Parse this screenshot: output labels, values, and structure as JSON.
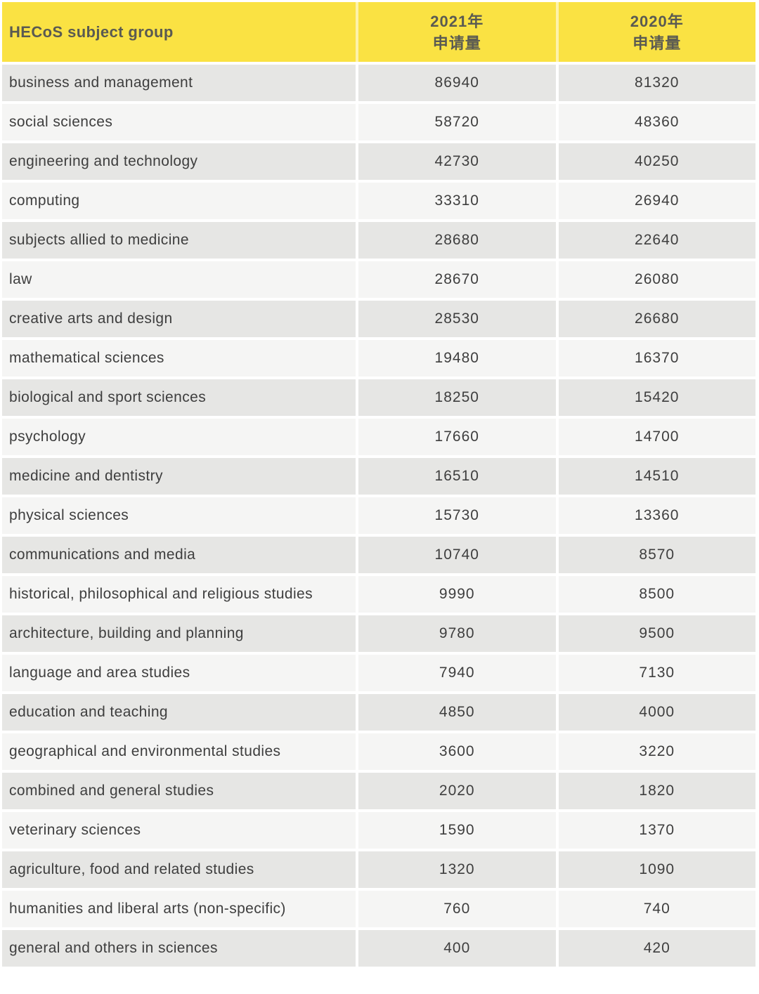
{
  "colors": {
    "header_bg": "#fae243",
    "header_text": "#5a5a52",
    "row_dark_bg": "#e6e6e4",
    "row_light_bg": "#f5f5f4",
    "cell_text": "#3e3e3e",
    "separator": "#ffffff"
  },
  "table": {
    "header": {
      "subject_label": "HECoS subject group",
      "col_2021": {
        "line1": "2021年",
        "line2": "申请量"
      },
      "col_2020": {
        "line1": "2020年",
        "line2": "申请量"
      }
    },
    "rows": [
      {
        "subject": "business and management",
        "applications_2021": "86940",
        "applications_2020": "81320"
      },
      {
        "subject": "social sciences",
        "applications_2021": "58720",
        "applications_2020": "48360"
      },
      {
        "subject": "engineering and technology",
        "applications_2021": "42730",
        "applications_2020": "40250"
      },
      {
        "subject": "computing",
        "applications_2021": "33310",
        "applications_2020": "26940"
      },
      {
        "subject": "subjects allied to medicine",
        "applications_2021": "28680",
        "applications_2020": "22640"
      },
      {
        "subject": "law",
        "applications_2021": "28670",
        "applications_2020": "26080"
      },
      {
        "subject": "creative arts and design",
        "applications_2021": "28530",
        "applications_2020": "26680"
      },
      {
        "subject": "mathematical sciences",
        "applications_2021": "19480",
        "applications_2020": "16370"
      },
      {
        "subject": "biological and sport sciences",
        "applications_2021": "18250",
        "applications_2020": "15420"
      },
      {
        "subject": "psychology",
        "applications_2021": "17660",
        "applications_2020": "14700"
      },
      {
        "subject": "medicine and dentistry",
        "applications_2021": "16510",
        "applications_2020": "14510"
      },
      {
        "subject": "physical sciences",
        "applications_2021": "15730",
        "applications_2020": "13360"
      },
      {
        "subject": "communications and media",
        "applications_2021": "10740",
        "applications_2020": "8570"
      },
      {
        "subject": "historical, philosophical and religious studies",
        "applications_2021": "9990",
        "applications_2020": "8500"
      },
      {
        "subject": "architecture, building and planning",
        "applications_2021": "9780",
        "applications_2020": "9500"
      },
      {
        "subject": "language and area studies",
        "applications_2021": "7940",
        "applications_2020": "7130"
      },
      {
        "subject": "education and teaching",
        "applications_2021": "4850",
        "applications_2020": "4000"
      },
      {
        "subject": "geographical and environmental studies",
        "applications_2021": "3600",
        "applications_2020": "3220"
      },
      {
        "subject": "combined and general studies",
        "applications_2021": "2020",
        "applications_2020": "1820"
      },
      {
        "subject": "veterinary sciences",
        "applications_2021": "1590",
        "applications_2020": "1370"
      },
      {
        "subject": "agriculture, food and related studies",
        "applications_2021": "1320",
        "applications_2020": "1090"
      },
      {
        "subject": "humanities and liberal arts (non-specific)",
        "applications_2021": "760",
        "applications_2020": "740"
      },
      {
        "subject": "general and others in sciences",
        "applications_2021": "400",
        "applications_2020": "420"
      }
    ]
  },
  "chart_data": {
    "type": "table",
    "title": "",
    "columns": [
      "HECoS subject group",
      "2021年申请量",
      "2020年申请量"
    ],
    "rows": [
      [
        "business and management",
        86940,
        81320
      ],
      [
        "social sciences",
        58720,
        48360
      ],
      [
        "engineering and technology",
        42730,
        40250
      ],
      [
        "computing",
        33310,
        26940
      ],
      [
        "subjects allied to medicine",
        28680,
        22640
      ],
      [
        "law",
        28670,
        26080
      ],
      [
        "creative arts and design",
        28530,
        26680
      ],
      [
        "mathematical sciences",
        19480,
        16370
      ],
      [
        "biological and sport sciences",
        18250,
        15420
      ],
      [
        "psychology",
        17660,
        14700
      ],
      [
        "medicine and dentistry",
        16510,
        14510
      ],
      [
        "physical sciences",
        15730,
        13360
      ],
      [
        "communications and media",
        10740,
        8570
      ],
      [
        "historical, philosophical and religious studies",
        9990,
        8500
      ],
      [
        "architecture, building and planning",
        9780,
        9500
      ],
      [
        "language and area studies",
        7940,
        7130
      ],
      [
        "education and teaching",
        4850,
        4000
      ],
      [
        "geographical and environmental studies",
        3600,
        3220
      ],
      [
        "combined and general studies",
        2020,
        1820
      ],
      [
        "veterinary sciences",
        1590,
        1370
      ],
      [
        "agriculture, food and related studies",
        1320,
        1090
      ],
      [
        "humanities and liberal arts (non-specific)",
        760,
        740
      ],
      [
        "general and others in sciences",
        400,
        420
      ]
    ]
  }
}
